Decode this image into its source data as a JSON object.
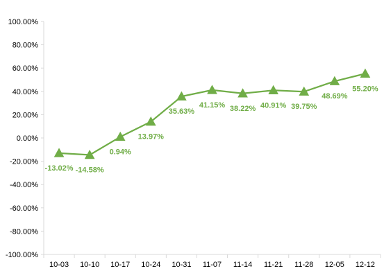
{
  "chart_data": {
    "type": "line",
    "title": "",
    "xlabel": "",
    "ylabel": "",
    "categories": [
      "10-03",
      "10-10",
      "10-17",
      "10-24",
      "10-31",
      "11-07",
      "11-14",
      "11-21",
      "11-28",
      "12-05",
      "12-12"
    ],
    "series": [
      {
        "values": [
          -13.02,
          -14.58,
          0.94,
          13.97,
          35.63,
          41.15,
          38.22,
          40.91,
          39.75,
          48.69,
          55.2
        ],
        "labels": [
          "-13.02%",
          "-14.58%",
          "0.94%",
          "13.97%",
          "35.63%",
          "41.15%",
          "38.22%",
          "40.91%",
          "39.75%",
          "48.69%",
          "55.20%"
        ],
        "color": "#70ad47",
        "marker": "triangle"
      }
    ],
    "ylim": [
      -100,
      100
    ],
    "yticks": [
      "100.00%",
      "80.00%",
      "60.00%",
      "40.00%",
      "20.00%",
      "0.00%",
      "-20.00%",
      "-40.00%",
      "-60.00%",
      "-80.00%",
      "-100.00%"
    ],
    "grid": false,
    "legend": "none",
    "colors": {
      "series": "#70ad47",
      "label": "#70ad47",
      "axis": "#d9d9d9",
      "text": "#000000"
    }
  }
}
